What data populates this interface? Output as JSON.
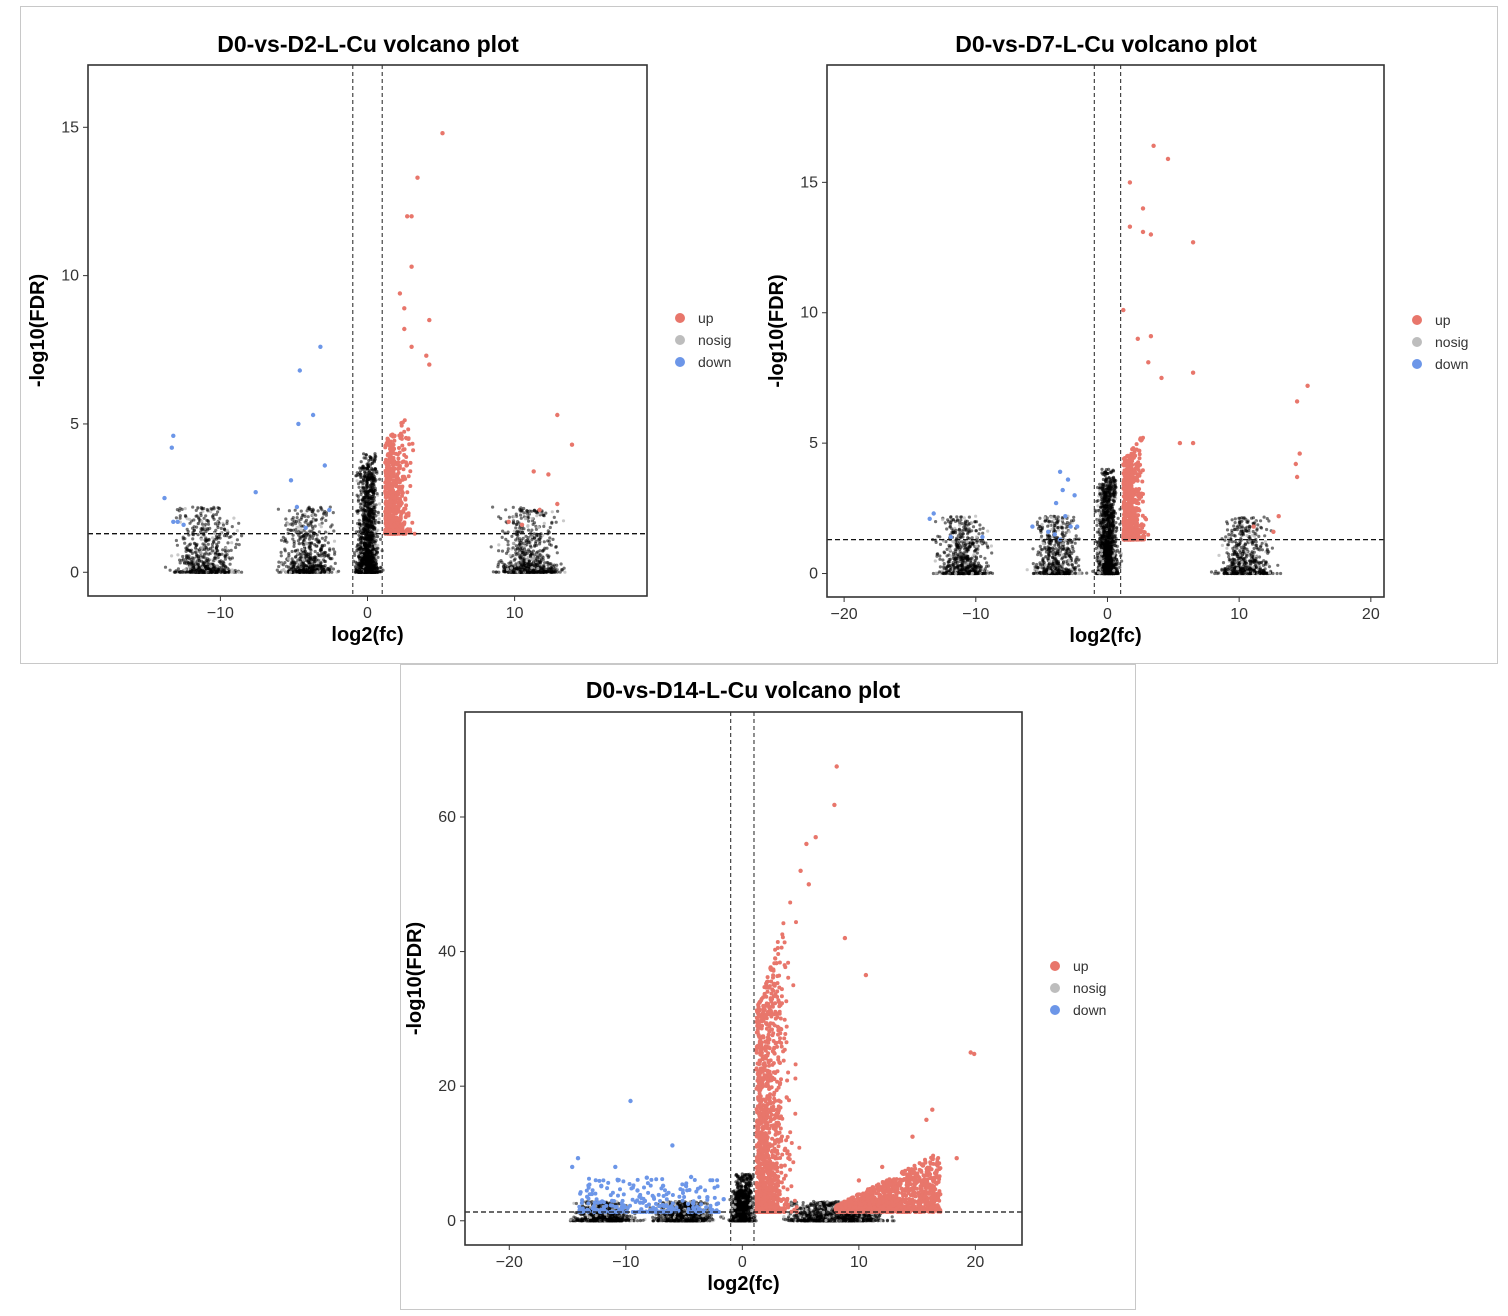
{
  "chart_data": [
    {
      "type": "scatter",
      "title": "D0-vs-D2-L-Cu volcano plot",
      "xlabel": "log2(fc)",
      "ylabel": "-log10(FDR)",
      "xlim": [
        -19,
        19
      ],
      "ylim": [
        -0.8,
        17.1
      ],
      "x_ticks": [
        -10,
        0,
        10
      ],
      "y_ticks": [
        0,
        5,
        10,
        15
      ],
      "fc_threshold": [
        -1,
        1
      ],
      "fdr_threshold": 1.3,
      "grid": false,
      "legend_position": "right",
      "legend": [
        "up",
        "nosig",
        "down"
      ],
      "colors": {
        "up": "#e8766b",
        "nosig": "#bdbdbd",
        "down": "#6c96e8",
        "ns_dense": "#000000"
      },
      "series": [
        {
          "name": "up",
          "points": [
            [
              5.1,
              14.8
            ],
            [
              3.4,
              13.3
            ],
            [
              2.7,
              12.0
            ],
            [
              3.0,
              12.0
            ],
            [
              3.0,
              10.3
            ],
            [
              2.2,
              9.4
            ],
            [
              2.5,
              8.9
            ],
            [
              4.2,
              8.5
            ],
            [
              2.5,
              8.2
            ],
            [
              3.0,
              7.6
            ],
            [
              4.0,
              7.3
            ],
            [
              4.2,
              7.0
            ],
            [
              12.9,
              5.3
            ],
            [
              13.9,
              4.3
            ],
            [
              11.3,
              3.4
            ],
            [
              12.3,
              3.3
            ],
            [
              12.9,
              2.3
            ],
            [
              11.7,
              2.1
            ],
            [
              10.5,
              1.6
            ],
            [
              9.6,
              1.7
            ]
          ]
        },
        {
          "name": "down",
          "points": [
            [
              -3.2,
              7.6
            ],
            [
              -4.6,
              6.8
            ],
            [
              -3.7,
              5.3
            ],
            [
              -4.7,
              5.0
            ],
            [
              -13.2,
              4.6
            ],
            [
              -13.3,
              4.2
            ],
            [
              -5.2,
              3.1
            ],
            [
              -2.9,
              3.6
            ],
            [
              -7.6,
              2.7
            ],
            [
              -13.8,
              2.5
            ],
            [
              -4.8,
              2.2
            ],
            [
              -2.6,
              2.1
            ],
            [
              -13.2,
              1.7
            ],
            [
              -12.9,
              1.7
            ],
            [
              -12.5,
              1.6
            ],
            [
              -4.2,
              1.5
            ]
          ]
        }
      ]
    },
    {
      "type": "scatter",
      "title": "D0-vs-D7-L-Cu volcano plot",
      "xlabel": "log2(fc)",
      "ylabel": "-log10(FDR)",
      "xlim": [
        -21.3,
        21
      ],
      "ylim": [
        -0.9,
        19.5
      ],
      "x_ticks": [
        -20,
        -10,
        0,
        10,
        20
      ],
      "y_ticks": [
        0,
        5,
        10,
        15
      ],
      "fc_threshold": [
        -1,
        1
      ],
      "fdr_threshold": 1.3,
      "grid": false,
      "legend_position": "right",
      "legend": [
        "up",
        "nosig",
        "down"
      ],
      "colors": {
        "up": "#e8766b",
        "nosig": "#bdbdbd",
        "down": "#6c96e8",
        "ns_dense": "#000000"
      },
      "series": [
        {
          "name": "up",
          "points": [
            [
              3.5,
              16.4
            ],
            [
              4.6,
              15.9
            ],
            [
              1.7,
              15.0
            ],
            [
              2.7,
              14.0
            ],
            [
              1.7,
              13.3
            ],
            [
              2.7,
              13.1
            ],
            [
              3.3,
              13.0
            ],
            [
              6.5,
              12.7
            ],
            [
              1.2,
              10.1
            ],
            [
              2.3,
              9.0
            ],
            [
              3.3,
              9.1
            ],
            [
              3.1,
              8.1
            ],
            [
              4.1,
              7.5
            ],
            [
              15.2,
              7.2
            ],
            [
              6.5,
              7.7
            ],
            [
              14.4,
              6.6
            ],
            [
              14.6,
              4.6
            ],
            [
              14.3,
              4.2
            ],
            [
              6.5,
              5.0
            ],
            [
              5.5,
              5.0
            ],
            [
              14.4,
              3.7
            ],
            [
              13.0,
              2.2
            ],
            [
              11.1,
              1.8
            ],
            [
              12.6,
              1.6
            ]
          ]
        },
        {
          "name": "down",
          "points": [
            [
              -13.2,
              2.3
            ],
            [
              -13.5,
              2.1
            ],
            [
              -11.9,
              1.4
            ],
            [
              -9.5,
              1.4
            ],
            [
              -5.7,
              1.8
            ],
            [
              -4.5,
              1.6
            ],
            [
              -3.6,
              3.9
            ],
            [
              -3.0,
              3.6
            ],
            [
              -3.4,
              3.2
            ],
            [
              -2.5,
              3.0
            ],
            [
              -3.9,
              2.7
            ],
            [
              -3.2,
              2.2
            ],
            [
              -2.3,
              1.8
            ],
            [
              -4.0,
              1.5
            ],
            [
              -3.6,
              1.3
            ],
            [
              -2.8,
              1.8
            ]
          ]
        }
      ]
    },
    {
      "type": "scatter",
      "title": "D0-vs-D14-L-Cu volcano plot",
      "xlabel": "log2(fc)",
      "ylabel": "-log10(FDR)",
      "xlim": [
        -23.8,
        24
      ],
      "ylim": [
        -3.6,
        75.6
      ],
      "x_ticks": [
        -20,
        -10,
        0,
        10,
        20
      ],
      "y_ticks": [
        0,
        20,
        40,
        60
      ],
      "fc_threshold": [
        -1,
        1
      ],
      "fdr_threshold": 1.3,
      "grid": false,
      "legend_position": "right",
      "legend": [
        "up",
        "nosig",
        "down"
      ],
      "colors": {
        "up": "#e8766b",
        "nosig": "#bdbdbd",
        "down": "#6c96e8",
        "ns_dense": "#000000"
      },
      "series": [
        {
          "name": "up",
          "points": [
            [
              8.1,
              67.5
            ],
            [
              7.9,
              61.8
            ],
            [
              6.3,
              57.0
            ],
            [
              5.5,
              56.0
            ],
            [
              5.0,
              52.0
            ],
            [
              5.7,
              50.0
            ],
            [
              8.8,
              42.0
            ],
            [
              10.6,
              36.5
            ],
            [
              19.6,
              25.0
            ],
            [
              19.9,
              24.8
            ],
            [
              16.3,
              16.5
            ],
            [
              15.8,
              15.0
            ],
            [
              14.6,
              12.5
            ],
            [
              18.4,
              9.3
            ],
            [
              12.0,
              8.0
            ],
            [
              10.0,
              6.0
            ]
          ]
        },
        {
          "name": "down",
          "points": [
            [
              -9.6,
              17.8
            ],
            [
              -6.0,
              11.2
            ],
            [
              -14.1,
              9.3
            ],
            [
              -14.6,
              8.0
            ],
            [
              -10.9,
              8.0
            ],
            [
              -12.1,
              5.2
            ],
            [
              -8.2,
              6.4
            ],
            [
              -4.4,
              6.5
            ],
            [
              -6.8,
              5.2
            ],
            [
              -9.0,
              4.5
            ],
            [
              -3.0,
              3.5
            ],
            [
              -1.6,
              3.2
            ],
            [
              -12.9,
              4.0
            ]
          ]
        }
      ]
    }
  ]
}
